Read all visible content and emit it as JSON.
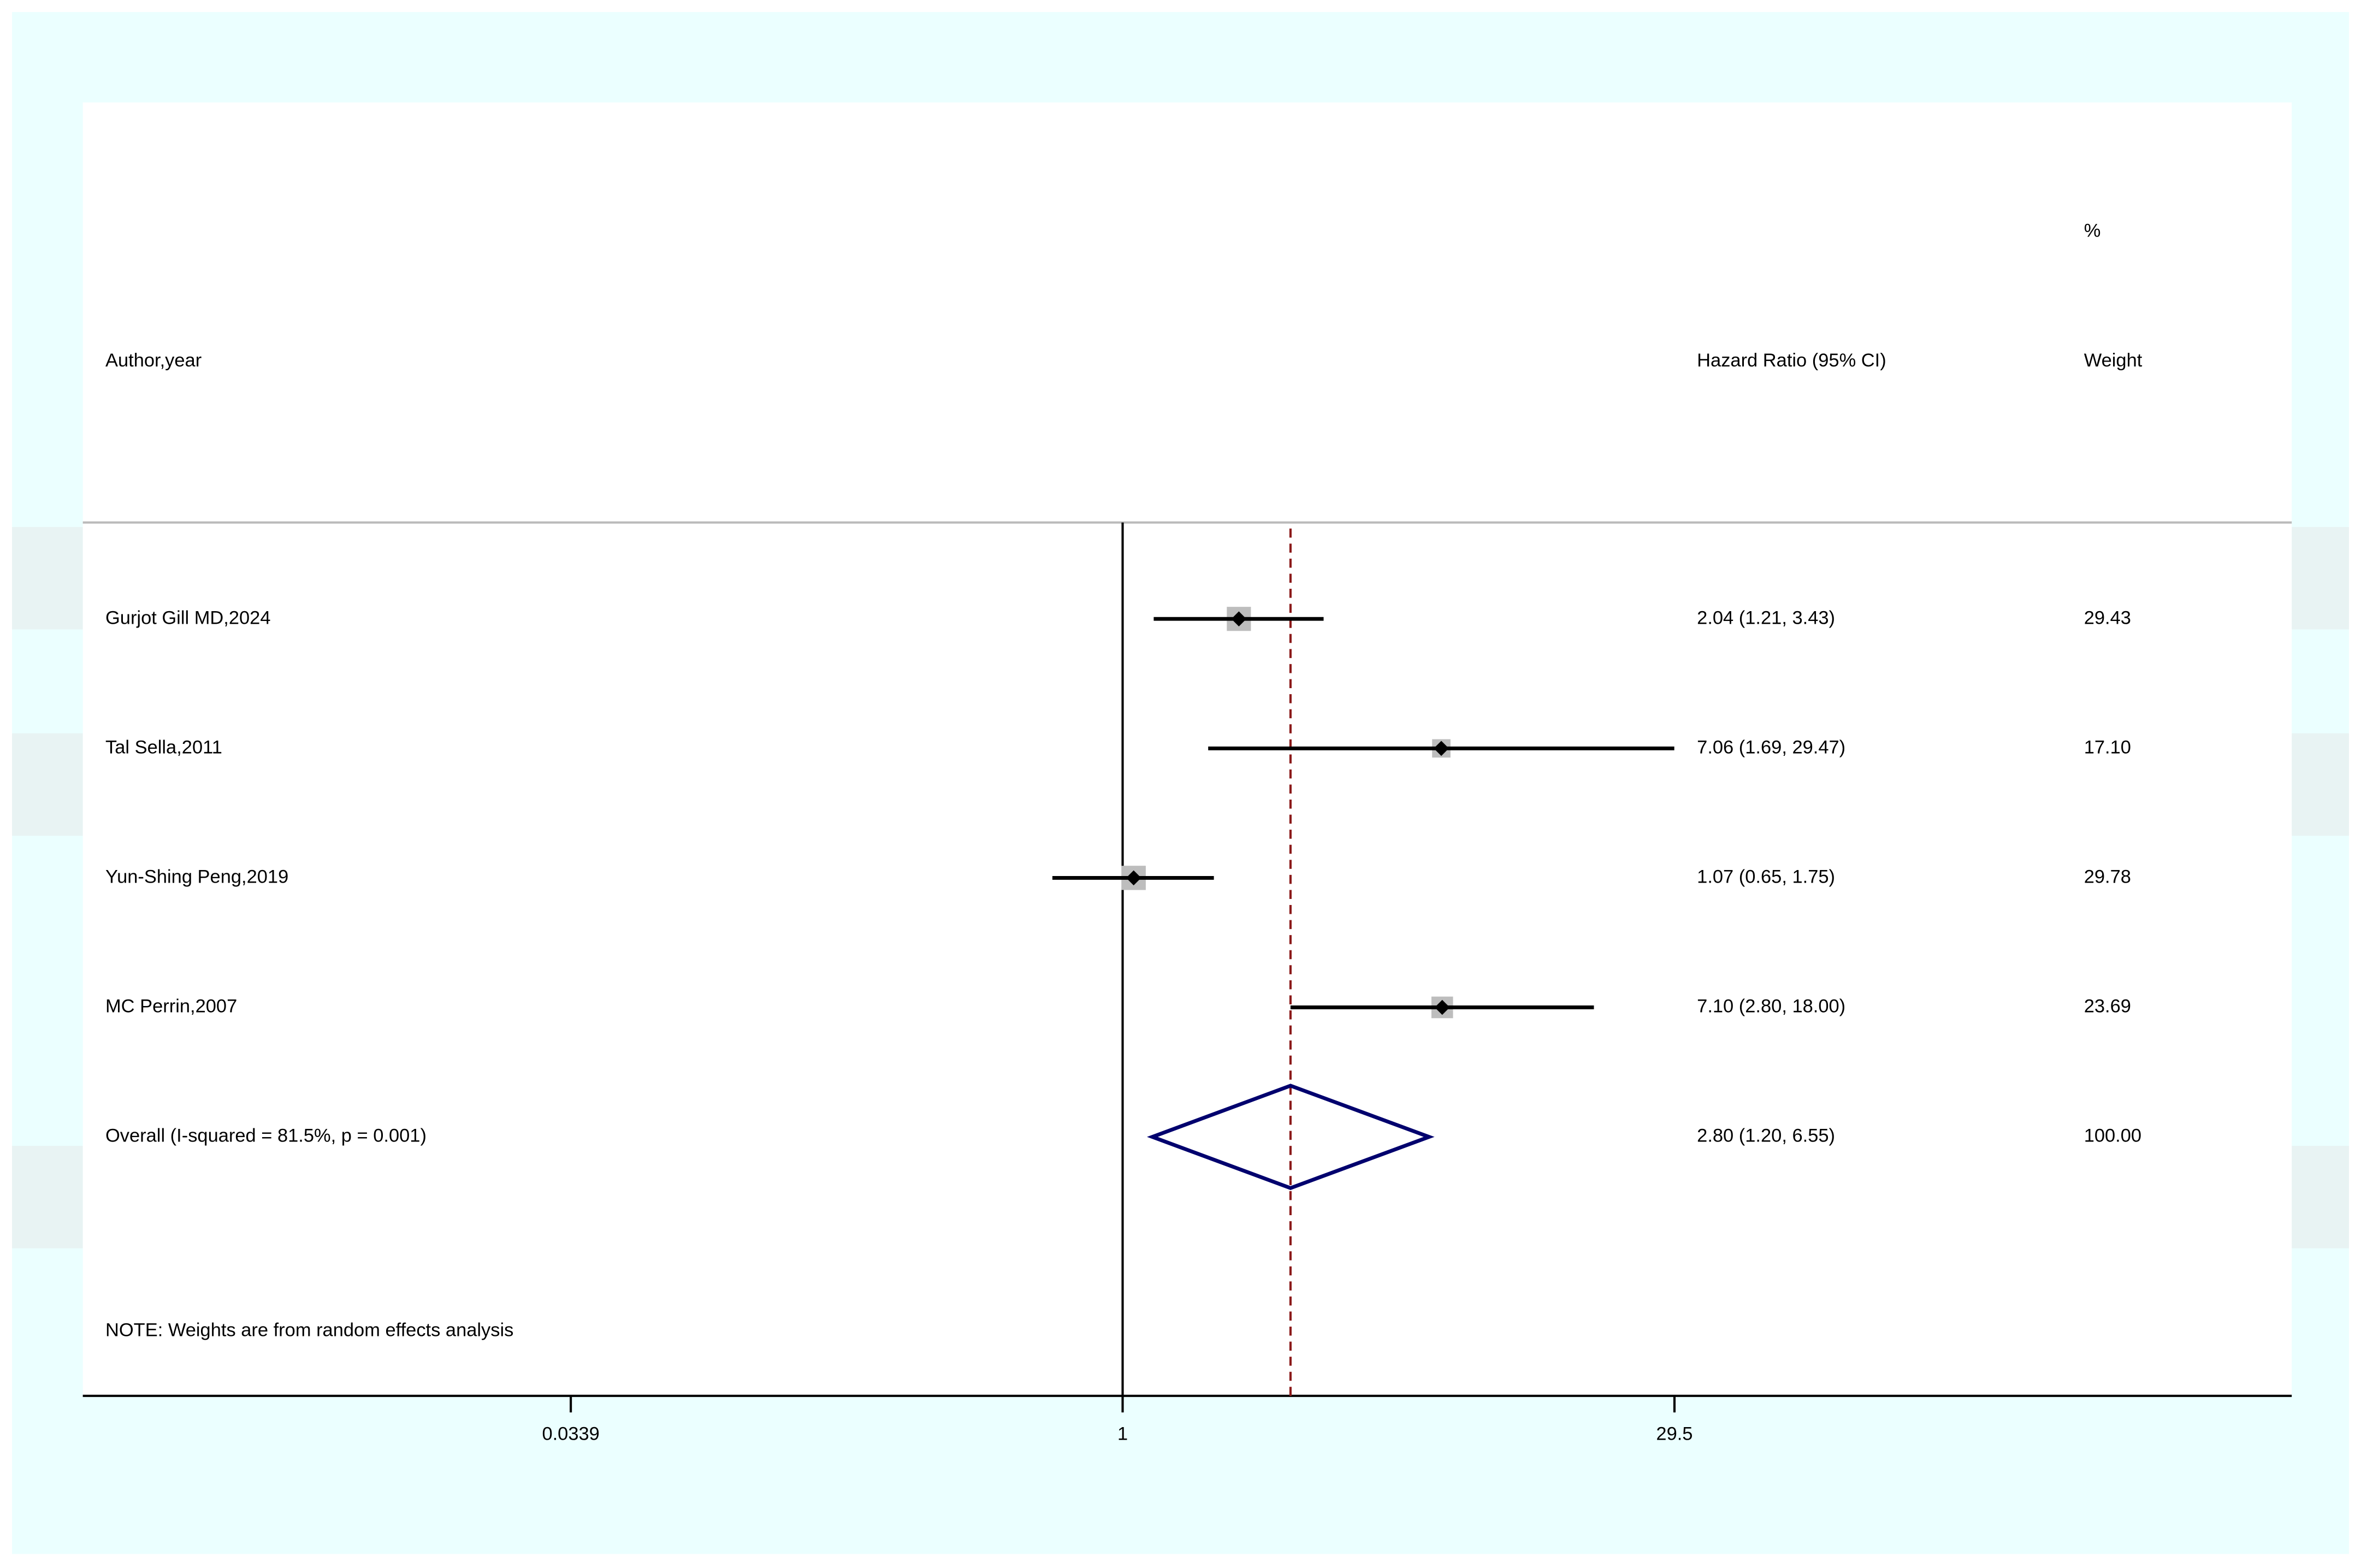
{
  "chart_data": {
    "type": "forest",
    "headers": {
      "study": "Author,year",
      "effect": "Hazard Ratio (95% CI)",
      "weight_top": "%",
      "weight": "Weight"
    },
    "categories": [
      "Gurjot Gill MD,2024",
      "Tal Sella,2011",
      "Yun-Shing Peng,2019",
      "MC Perrin,2007"
    ],
    "values": [
      2.04,
      7.06,
      1.07,
      7.1
    ],
    "lower": [
      1.21,
      1.69,
      0.65,
      2.8
    ],
    "upper": [
      3.43,
      29.47,
      1.75,
      18.0
    ],
    "value_labels": [
      "2.04 (1.21, 3.43)",
      "7.06 (1.69, 29.47)",
      "1.07 (0.65, 1.75)",
      "7.10 (2.80, 18.00)"
    ],
    "weights": [
      29.43,
      17.1,
      29.78,
      23.69
    ],
    "weight_labels": [
      "29.43",
      "17.10",
      "29.78",
      "23.69"
    ],
    "overall": {
      "label": "Overall  (I-squared = 81.5%, p = 0.001)",
      "value": 2.8,
      "lower": 1.2,
      "upper": 6.55,
      "value_label": "2.80 (1.20, 6.55)",
      "weight_label": "100.00"
    },
    "note": "NOTE: Weights are from random effects analysis",
    "log_scale": true,
    "xlim": [
      0.0017,
      1300
    ],
    "xticks": [
      0.0339,
      1,
      29.5
    ],
    "null_line": 1,
    "box_color": "#bdbdbd",
    "point_color": "#000000",
    "ci_color": "#000000",
    "diamond_color": "#00006e",
    "overall_line_color": "#8b1a1a"
  }
}
